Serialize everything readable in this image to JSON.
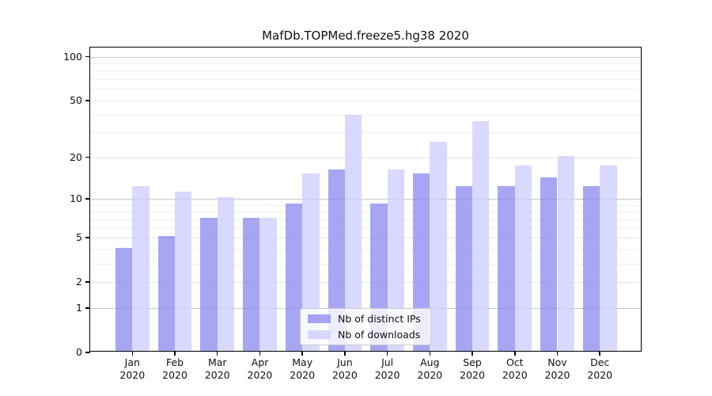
{
  "figure": {
    "title": "MafDb.TOPMed.freeze5.hg38 2020"
  },
  "chart_data": {
    "type": "bar",
    "title": "MafDb.TOPMed.freeze5.hg38 2020",
    "categories": [
      "Jan",
      "Feb",
      "Mar",
      "Apr",
      "May",
      "Jun",
      "Jul",
      "Aug",
      "Sep",
      "Oct",
      "Nov",
      "Dec"
    ],
    "category_year": "2020",
    "series": [
      {
        "name": "Nb of distinct IPs",
        "color": "#8888ee",
        "values": [
          4,
          5,
          7,
          7,
          9,
          16,
          9,
          15,
          12,
          12,
          14,
          12
        ]
      },
      {
        "name": "Nb of downloads",
        "color": "#ccccff",
        "values": [
          12,
          11,
          10,
          7,
          15,
          39,
          16,
          25,
          35,
          17,
          20,
          17
        ]
      }
    ],
    "bar_alpha": 0.75,
    "xlabel": "",
    "ylabel": "",
    "yscale": "log1p",
    "ylim": [
      0,
      115
    ],
    "yticks": [
      0,
      1,
      2,
      5,
      10,
      20,
      50,
      100
    ],
    "major_decade_gridlines": [
      1,
      10,
      100
    ],
    "minor_gridlines": [
      3,
      4,
      6,
      7,
      8,
      9,
      30,
      40,
      60,
      70,
      80,
      90
    ],
    "grid": "horizontal",
    "legend_position": "lower center",
    "colors": {
      "decade_gridline": "#c8c8c8",
      "tick_gridline": "#e6e6e6",
      "minor_gridline": "#efefef",
      "axis_frame": "#000000",
      "background": "#ffffff"
    }
  }
}
